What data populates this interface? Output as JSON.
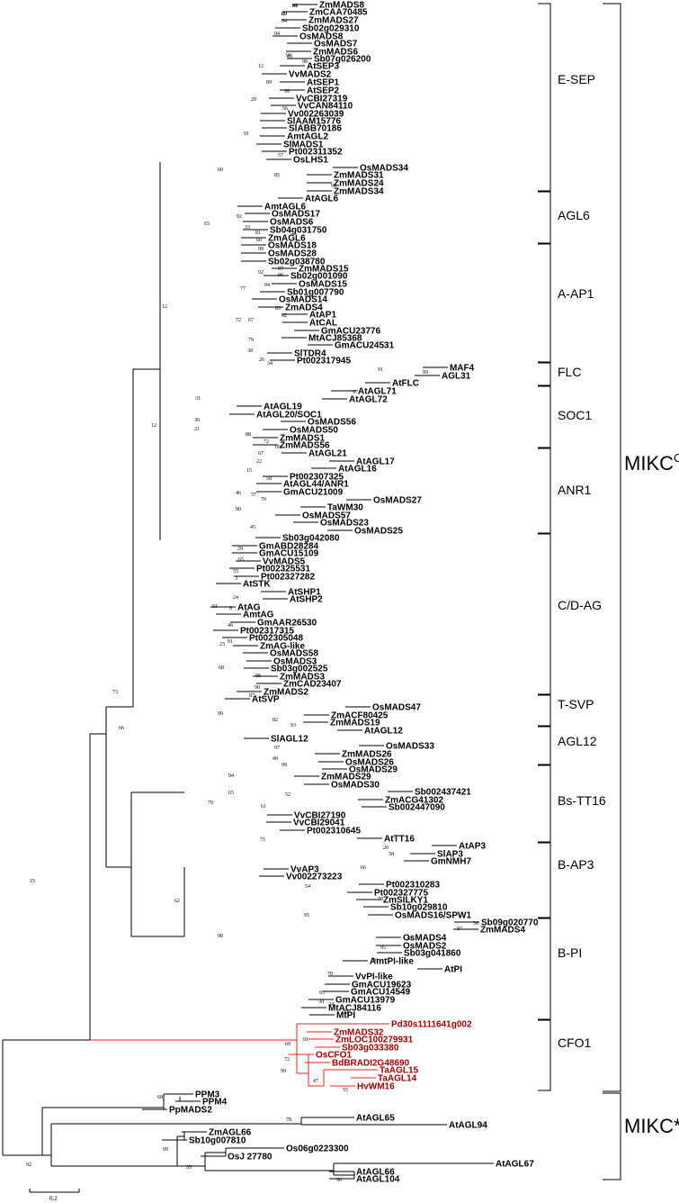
{
  "tree": {
    "taxa": {
      "e_sep": [
        "ZmMADS8",
        "ZmCAA70485",
        "ZmMADS27",
        "Sb02g029310",
        "OsMADS8",
        "OsMADS7",
        "ZmMADS6",
        "Sb07g026200",
        "AtSEP3",
        "VvMADS2",
        "AtSEP1",
        "AtSEP2",
        "VvCBI27319",
        "VvCAN84110",
        "Vv002263039",
        "SlAAM15776",
        "SlABB70186",
        "AmtAGL2",
        "SlMADS1",
        "Pt002311352",
        "OsLHS1",
        "OsMADS34",
        "ZmMADS31",
        "ZmMADS24",
        "ZmMADS34"
      ],
      "agl6": [
        "AtAGL6",
        "AmtAGL6",
        "OsMADS17",
        "OsMADS6",
        "Sb04g031750",
        "ZmAGL6"
      ],
      "a_ap1": [
        "OsMADS18",
        "OsMADS28",
        "Sb02g038780",
        "ZmMADS15",
        "Sb02g001090",
        "OsMADS15",
        "Sb01g007790",
        "OsMADS14",
        "ZmADS4",
        "AtAP1",
        "AtCAL",
        "GmACU23776",
        "MtACJ85368",
        "GmACU24531",
        "SlTDR4",
        "Pt002317945"
      ],
      "flc": [
        "MAF4",
        "AGL31",
        "AtFLC"
      ],
      "soc1": [
        "AtAGL71",
        "AtAGL72",
        "AtAGL19",
        "AtAGL20/SOC1",
        "OsMADS56",
        "OsMADS50",
        "ZmMADS1",
        "ZmMADS56"
      ],
      "anr1": [
        "AtAGL21",
        "AtAGL17",
        "AtAGL16",
        "Pt002307325",
        "AtAGL44/ANR1",
        "GmACU21009",
        "OsMADS27",
        "TaWM30",
        "OsMADS57",
        "OsMADS23",
        "OsMADS25"
      ],
      "cd_ag": [
        "Sb03g042080",
        "GmABD28284",
        "GmACU15109",
        "VvMADS5",
        "Pt002325531",
        "Pt002327282",
        "AtSTK",
        "AtSHP1",
        "AtSHP2",
        "AtAG",
        "AmtAG",
        "GmAAR26530",
        "Pt002317315",
        "Pt002305048",
        "ZmAG-like",
        "OsMADS58",
        "OsMADS3",
        "Sb03g002525",
        "ZmMADS3",
        "ZmCAD23407",
        "ZmMADS2"
      ],
      "t_svp": [
        "AtSVP",
        "OsMADS47",
        "ZmACF80425",
        "ZmMADS19"
      ],
      "agl12": [
        "AtAGL12",
        "SlAGL12",
        "OsMADS33",
        "ZmMADS26",
        "OsMADS26",
        "OsMADS29",
        "ZmMADS29",
        "OsMADS30"
      ],
      "bs_tt16": [
        "Sb002437421",
        "ZmACG41302",
        "Sb002447090",
        "VvCBI27190",
        "VvCBI29041",
        "Pt002310645",
        "AtTT16"
      ],
      "b_ap3": [
        "AtAP3",
        "SlAP3",
        "GmNMH7",
        "VvAP3",
        "Vv002273223",
        "Pt002310283",
        "Pt002327775",
        "ZmSILKY1",
        "Sb10g029810",
        "OsMADS16/SPW1"
      ],
      "b_pi": [
        "Sb09g020770",
        "ZmMADS4",
        "OsMADS4",
        "OsMADS2",
        "Sb03g041860",
        "AmtPI-like",
        "AtPI",
        "VvPI-like",
        "GmACU19623",
        "GmACU14549",
        "GmACU13979",
        "MtACJ84116",
        "MtPI"
      ],
      "cfo1": [
        "Pd30s1111641g002",
        "ZmMADS32",
        "ZmLOC100279931",
        "Sb03g033380",
        "OsCFO1",
        "BdBRADI2G48690",
        "TaAGL15",
        "TaAGL14",
        "HvWM16"
      ],
      "mikc_star": [
        "PPM3",
        "PPM4",
        "PpMADS2",
        "AtAGL65",
        "AtAGL94",
        "ZmAGL66",
        "Sb10g007810",
        "Os06g0223300",
        "OsJ 27780",
        "AtAGL67",
        "AtAGL66",
        "AtAGL104"
      ]
    },
    "bootstrap": [
      "98",
      "89",
      "64",
      "94",
      "12",
      "98",
      "93",
      "98",
      "20",
      "89",
      "99",
      "56",
      "91",
      "57",
      "60",
      "85",
      "99",
      "92",
      "33",
      "81",
      "60",
      "65",
      "98",
      "92",
      "87",
      "96",
      "94",
      "89",
      "72",
      "82",
      "67",
      "79",
      "38",
      "26",
      "34",
      "77",
      "12",
      "99",
      "91",
      "97",
      "31",
      "36",
      "21",
      "88",
      "72",
      "69",
      "12",
      "67",
      "22",
      "15",
      "58",
      "46",
      "57",
      "70",
      "80",
      "45",
      "29",
      "65",
      "55",
      "3",
      "81",
      "24",
      "8",
      "46",
      "91",
      "23",
      "68",
      "89",
      "90",
      "87",
      "99",
      "82",
      "93",
      "97",
      "49",
      "99",
      "94",
      "65",
      "52",
      "79",
      "61",
      "71",
      "66",
      "15",
      "73",
      "20",
      "58",
      "66",
      "54",
      "95",
      "78",
      "98",
      "62",
      "38",
      "97",
      "81",
      "95",
      "98",
      "70",
      "41",
      "95",
      "24",
      "56",
      "91",
      "69",
      "72",
      "99",
      "47",
      "55",
      "68",
      "78",
      "92",
      "99",
      "35",
      "90",
      "41",
      "89"
    ],
    "groups": {
      "e_sep": "E-SEP",
      "agl6": "AGL6",
      "a_ap1": "A-AP1",
      "flc": "FLC",
      "soc1": "SOC1",
      "anr1": "ANR1",
      "cd_ag": "C/D-AG",
      "t_svp": "T-SVP",
      "agl12": "AGL12",
      "bs_tt16": "Bs-TT16",
      "b_ap3": "B-AP3",
      "b_pi": "B-PI",
      "cfo1": "CFO1"
    },
    "superclades": {
      "mikc_c_main": "MIKC",
      "mikc_c_sup": "C",
      "mikc_star": "MIKC*"
    },
    "scale_label": "0.2",
    "colors": {
      "highlight": "#e8201e",
      "highlight_text": "#a40000",
      "line": "#000000"
    }
  }
}
